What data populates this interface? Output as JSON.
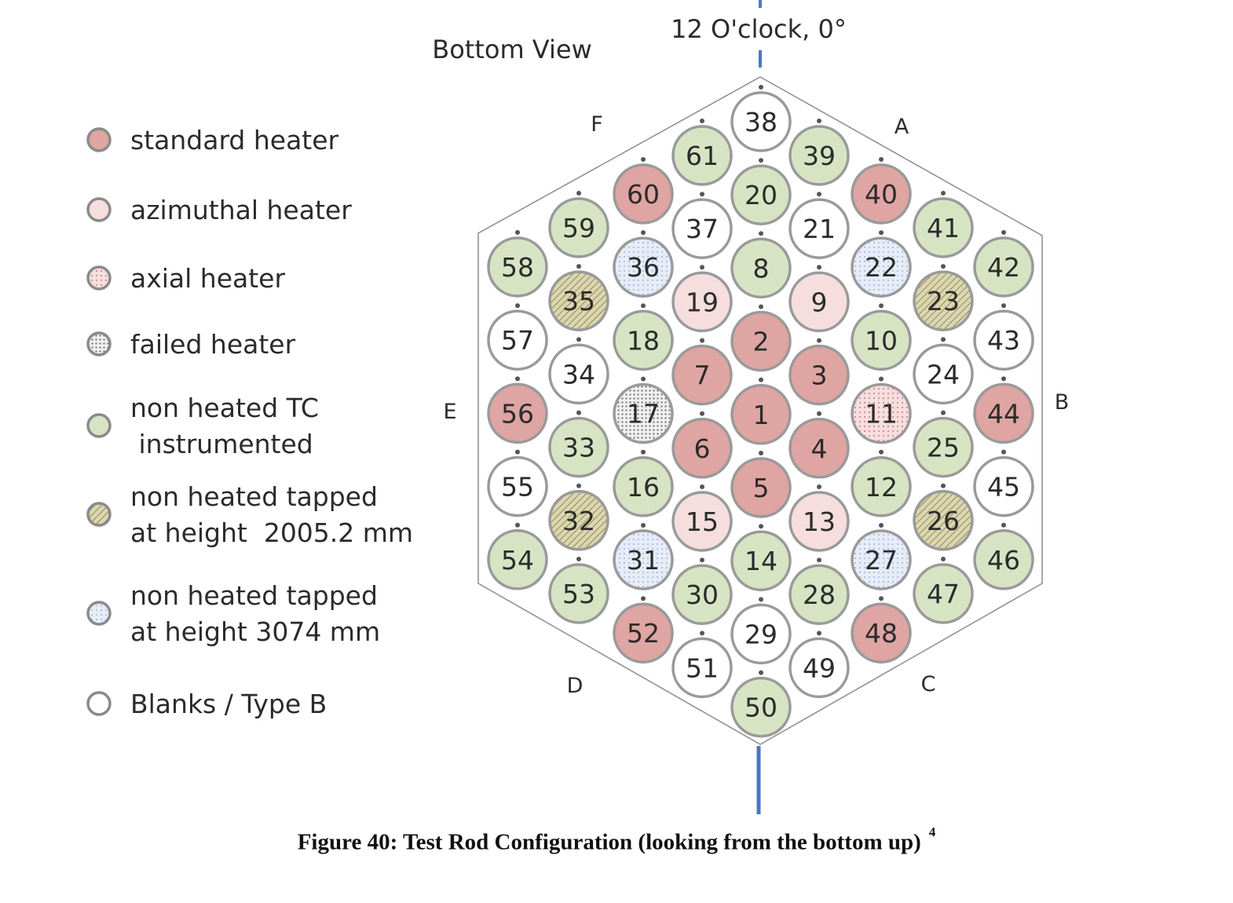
{
  "view_label": "Bottom View",
  "orientation_label": "12 O'clock, 0°",
  "corner_labels": {
    "A": "A",
    "B": "B",
    "C": "C",
    "D": "D",
    "E": "E",
    "F": "F"
  },
  "caption": "Figure 40: Test Rod Configuration (looking from the bottom up)",
  "caption_footnote": "4",
  "categories": {
    "standard": {
      "color": "#dea5a2",
      "pattern": "solid"
    },
    "azimuthal": {
      "color": "#f6dede",
      "pattern": "solid"
    },
    "axial": {
      "color": "#f7dedf",
      "pattern": "dots-red"
    },
    "failed": {
      "color": "#e8e8e8",
      "pattern": "dots-dark"
    },
    "tc": {
      "color": "#d7e4c4",
      "pattern": "solid"
    },
    "tap2005": {
      "color": "#dcd6b0",
      "pattern": "hatch"
    },
    "tap3074": {
      "color": "#e2e9f5",
      "pattern": "dots-blue"
    },
    "blank": {
      "color": "#ffffff",
      "pattern": "solid"
    }
  },
  "legend": [
    {
      "category": "standard",
      "lines": [
        "standard heater"
      ]
    },
    {
      "category": "azimuthal",
      "lines": [
        "azimuthal heater"
      ]
    },
    {
      "category": "axial",
      "lines": [
        "axial heater"
      ]
    },
    {
      "category": "failed",
      "lines": [
        "failed heater"
      ]
    },
    {
      "category": "tc",
      "lines": [
        "non heated TC",
        " instrumented"
      ]
    },
    {
      "category": "tap2005",
      "lines": [
        "non heated tapped",
        "at height  2005.2 mm"
      ]
    },
    {
      "category": "tap3074",
      "lines": [
        "non heated tapped",
        "at height 3074 mm"
      ]
    },
    {
      "category": "blank",
      "lines": [
        "Blanks / Type B"
      ]
    }
  ],
  "rod_columns": [
    [
      "58",
      "57",
      "56",
      "55",
      "54"
    ],
    [
      "59",
      "35",
      "34",
      "33",
      "32",
      "53"
    ],
    [
      "60",
      "36",
      "18",
      "17",
      "16",
      "31",
      "52"
    ],
    [
      "61",
      "37",
      "19",
      "7",
      "6",
      "15",
      "30",
      "51"
    ],
    [
      "38",
      "20",
      "8",
      "2",
      "1",
      "5",
      "14",
      "29",
      "50"
    ],
    [
      "39",
      "21",
      "9",
      "3",
      "4",
      "13",
      "28",
      "49"
    ],
    [
      "40",
      "22",
      "10",
      "11",
      "12",
      "27",
      "48"
    ],
    [
      "41",
      "23",
      "24",
      "25",
      "26",
      "47"
    ],
    [
      "42",
      "43",
      "44",
      "45",
      "46"
    ]
  ],
  "rod_categories": {
    "1": "standard",
    "2": "standard",
    "3": "standard",
    "4": "standard",
    "5": "standard",
    "6": "standard",
    "7": "standard",
    "40": "standard",
    "44": "standard",
    "48": "standard",
    "52": "standard",
    "56": "standard",
    "60": "standard",
    "9": "azimuthal",
    "13": "azimuthal",
    "15": "azimuthal",
    "19": "azimuthal",
    "11": "axial",
    "17": "failed",
    "8": "tc",
    "10": "tc",
    "12": "tc",
    "14": "tc",
    "16": "tc",
    "18": "tc",
    "20": "tc",
    "25": "tc",
    "28": "tc",
    "30": "tc",
    "33": "tc",
    "39": "tc",
    "41": "tc",
    "42": "tc",
    "46": "tc",
    "47": "tc",
    "50": "tc",
    "53": "tc",
    "54": "tc",
    "58": "tc",
    "59": "tc",
    "61": "tc",
    "23": "tap2005",
    "26": "tap2005",
    "32": "tap2005",
    "35": "tap2005",
    "22": "tap3074",
    "27": "tap3074",
    "31": "tap3074",
    "36": "tap3074",
    "21": "blank",
    "24": "blank",
    "29": "blank",
    "34": "blank",
    "37": "blank",
    "38": "blank",
    "43": "blank",
    "45": "blank",
    "49": "blank",
    "51": "blank",
    "55": "blank",
    "57": "blank"
  }
}
